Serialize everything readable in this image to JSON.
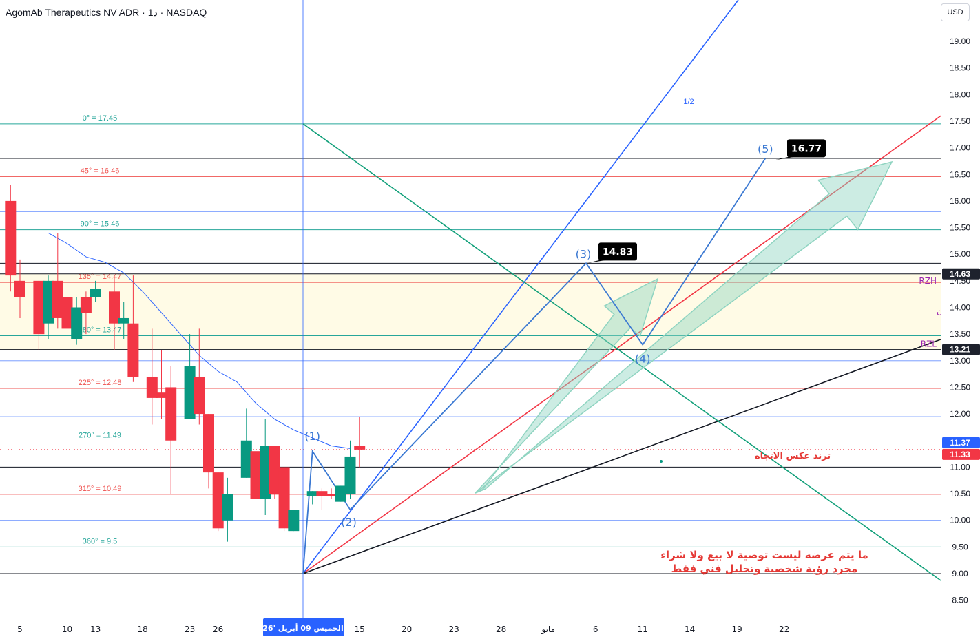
{
  "header": {
    "title": "AgomAb Therapeutics NV ADR · 1د · NASDAQ",
    "currency": "USD"
  },
  "chart_data": {
    "type": "candlestick",
    "price_axis": {
      "ylim": [
        8.2,
        19.6
      ],
      "ticks": [
        19.0,
        18.5,
        18.0,
        17.5,
        17.0,
        16.5,
        16.0,
        15.5,
        15.0,
        14.5,
        14.0,
        13.5,
        13.0,
        12.5,
        12.0,
        11.5,
        11.0,
        10.5,
        10.0,
        9.5,
        9.0,
        8.5
      ]
    },
    "time_axis": {
      "labels": [
        {
          "day": 0,
          "text": "5"
        },
        {
          "day": 5,
          "text": "10"
        },
        {
          "day": 8,
          "text": "13"
        },
        {
          "day": 13,
          "text": "18"
        },
        {
          "day": 18,
          "text": "23"
        },
        {
          "day": 21,
          "text": "26"
        },
        {
          "day": 27,
          "text": "أبريل"
        },
        {
          "day": 36,
          "text": "15"
        },
        {
          "day": 41,
          "text": "20"
        },
        {
          "day": 46,
          "text": "23"
        },
        {
          "day": 51,
          "text": "28"
        },
        {
          "day": 56,
          "text": "مايو"
        },
        {
          "day": 61,
          "text": "6"
        },
        {
          "day": 66,
          "text": "11"
        },
        {
          "day": 71,
          "text": "14"
        },
        {
          "day": 76,
          "text": "19"
        },
        {
          "day": 81,
          "text": "22"
        }
      ],
      "cursor_label": "الخميس 09 أبريل '26"
    },
    "candles": [
      {
        "d": -1,
        "o": 16.0,
        "h": 16.3,
        "l": 14.3,
        "c": 14.6
      },
      {
        "d": 0,
        "o": 14.5,
        "h": 14.9,
        "l": 13.8,
        "c": 14.2
      },
      {
        "d": 2,
        "o": 14.5,
        "h": 14.5,
        "l": 13.2,
        "c": 13.5
      },
      {
        "d": 3,
        "o": 13.7,
        "h": 14.6,
        "l": 13.4,
        "c": 14.5
      },
      {
        "d": 4,
        "o": 14.5,
        "h": 15.4,
        "l": 13.6,
        "c": 13.8
      },
      {
        "d": 5,
        "o": 14.2,
        "h": 14.3,
        "l": 13.2,
        "c": 13.6
      },
      {
        "d": 6,
        "o": 13.4,
        "h": 14.2,
        "l": 13.3,
        "c": 14.0
      },
      {
        "d": 7,
        "o": 14.2,
        "h": 14.3,
        "l": 13.5,
        "c": 13.9
      },
      {
        "d": 8,
        "o": 14.2,
        "h": 14.5,
        "l": 14.1,
        "c": 14.35
      },
      {
        "d": 10,
        "o": 14.3,
        "h": 14.6,
        "l": 13.2,
        "c": 13.7
      },
      {
        "d": 11,
        "o": 13.7,
        "h": 14.1,
        "l": 13.4,
        "c": 13.8
      },
      {
        "d": 12,
        "o": 13.7,
        "h": 14.6,
        "l": 12.6,
        "c": 12.7
      },
      {
        "d": 14,
        "o": 12.7,
        "h": 13.6,
        "l": 11.8,
        "c": 12.3
      },
      {
        "d": 15,
        "o": 12.4,
        "h": 13.2,
        "l": 11.9,
        "c": 12.3
      },
      {
        "d": 16,
        "o": 12.5,
        "h": 12.9,
        "l": 10.5,
        "c": 11.5
      },
      {
        "d": 18,
        "o": 11.9,
        "h": 13.5,
        "l": 11.9,
        "c": 12.9
      },
      {
        "d": 19,
        "o": 12.7,
        "h": 13.6,
        "l": 11.8,
        "c": 12.0
      },
      {
        "d": 20,
        "o": 12.0,
        "h": 12.0,
        "l": 10.6,
        "c": 10.9
      },
      {
        "d": 21,
        "o": 10.9,
        "h": 10.9,
        "l": 9.8,
        "c": 9.85
      },
      {
        "d": 22,
        "o": 10.0,
        "h": 10.8,
        "l": 9.6,
        "c": 10.5
      },
      {
        "d": 24,
        "o": 10.8,
        "h": 12.1,
        "l": 10.8,
        "c": 11.5
      },
      {
        "d": 25,
        "o": 11.3,
        "h": 12.0,
        "l": 10.3,
        "c": 10.4
      },
      {
        "d": 26,
        "o": 10.4,
        "h": 11.9,
        "l": 10.1,
        "c": 11.4
      },
      {
        "d": 27,
        "o": 11.4,
        "h": 11.4,
        "l": 10.4,
        "c": 10.5
      },
      {
        "d": 28,
        "o": 11.0,
        "h": 11.0,
        "l": 9.8,
        "c": 9.85
      },
      {
        "d": 29,
        "o": 9.8,
        "h": 10.2,
        "l": 9.8,
        "c": 10.2
      },
      {
        "d": 31,
        "o": 10.45,
        "h": 10.55,
        "l": 10.3,
        "c": 10.55
      },
      {
        "d": 32,
        "o": 10.55,
        "h": 10.6,
        "l": 10.2,
        "c": 10.45
      },
      {
        "d": 33,
        "o": 10.5,
        "h": 10.6,
        "l": 10.4,
        "c": 10.45
      },
      {
        "d": 34,
        "o": 10.35,
        "h": 10.65,
        "l": 10.35,
        "c": 10.65
      },
      {
        "d": 35,
        "o": 10.5,
        "h": 11.5,
        "l": 10.4,
        "c": 11.2
      },
      {
        "d": 36,
        "o": 11.4,
        "h": 11.95,
        "l": 11.0,
        "c": 11.33
      }
    ],
    "moving_average": [
      {
        "d": 3,
        "p": 15.4
      },
      {
        "d": 5,
        "p": 15.2
      },
      {
        "d": 7,
        "p": 14.95
      },
      {
        "d": 9,
        "p": 14.85
      },
      {
        "d": 11,
        "p": 14.65
      },
      {
        "d": 13,
        "p": 14.3
      },
      {
        "d": 15,
        "p": 13.9
      },
      {
        "d": 17,
        "p": 13.5
      },
      {
        "d": 19,
        "p": 13.1
      },
      {
        "d": 21,
        "p": 12.8
      },
      {
        "d": 23,
        "p": 12.6
      },
      {
        "d": 25,
        "p": 12.2
      },
      {
        "d": 27,
        "p": 11.9
      },
      {
        "d": 29,
        "p": 11.7
      },
      {
        "d": 31,
        "p": 11.55
      },
      {
        "d": 33,
        "p": 11.4
      },
      {
        "d": 35,
        "p": 11.35
      }
    ],
    "gann_levels": [
      {
        "label": "0° = 17.45",
        "price": 17.45,
        "color": "#26a69a"
      },
      {
        "label": "45° = 16.46",
        "price": 16.46,
        "color": "#ef5350"
      },
      {
        "label": "90° = 15.46",
        "price": 15.46,
        "color": "#26a69a"
      },
      {
        "label": "135° = 14.47",
        "price": 14.47,
        "color": "#ef5350"
      },
      {
        "label": "180° = 13.47",
        "price": 13.47,
        "color": "#26a69a"
      },
      {
        "label": "225° = 12.48",
        "price": 12.48,
        "color": "#ef5350"
      },
      {
        "label": "270° = 11.49",
        "price": 11.49,
        "color": "#26a69a"
      },
      {
        "label": "315° = 10.49",
        "price": 10.49,
        "color": "#ef5350"
      },
      {
        "label": "360° = 9.5",
        "price": 9.5,
        "color": "#26a69a"
      }
    ],
    "extra_blue_lines": [
      15.8,
      13.0,
      11.95,
      10.0
    ],
    "black_lines": [
      16.8,
      14.83,
      14.63,
      13.21,
      12.9,
      11.0,
      9.0
    ],
    "zone": {
      "top": 14.63,
      "bottom": 13.21,
      "label": "منطقة الزون",
      "top_label": "RZH",
      "bottom_label": "RZL"
    },
    "wave_points": [
      {
        "label": "(1)",
        "d": 31,
        "p": 11.3
      },
      {
        "label": "(2)",
        "d": 35,
        "p": 10.2
      },
      {
        "label": "(3)",
        "d": 60,
        "p": 14.83
      },
      {
        "label": "(4)",
        "d": 66,
        "p": 13.3
      },
      {
        "label": "(5)",
        "d": 79,
        "p": 16.8
      }
    ],
    "callouts": [
      {
        "text": "14.83",
        "d": 60,
        "p": 14.83
      },
      {
        "text": "16.77",
        "d": 80,
        "p": 16.77
      }
    ],
    "price_tags": [
      {
        "text": "14.63",
        "price": 14.63,
        "bg": "#1e222d"
      },
      {
        "text": "13.21",
        "price": 13.21,
        "bg": "#1e222d"
      },
      {
        "text": "11.37",
        "price": 11.37,
        "bg": "#2962ff"
      },
      {
        "text": "11.33",
        "price": 11.33,
        "bg": "#f23645"
      }
    ],
    "annotations": {
      "fan_label": "1/2",
      "trend_reversal": "ترند عكس الاتجاه",
      "disclaimer_line1": "ما يتم عرضه ليست توصية  لا بيع ولا شراء",
      "disclaimer_line2": "مجرد رؤية شخصية وتحليل فني  فقط"
    }
  }
}
